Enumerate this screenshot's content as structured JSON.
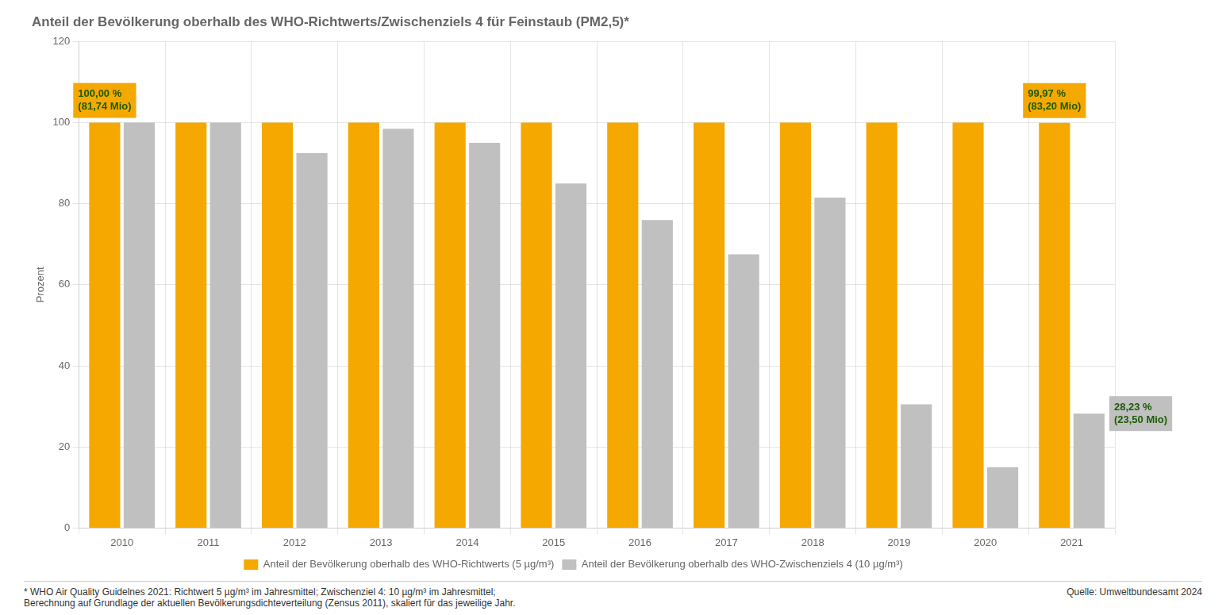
{
  "chart_data": {
    "type": "bar",
    "title": "Anteil der Bevölkerung oberhalb des WHO-Richtwerts/Zwischenziels 4 für Feinstaub (PM2,5)*",
    "y_label": "Prozent",
    "categories": [
      2010,
      2011,
      2012,
      2013,
      2014,
      2015,
      2016,
      2017,
      2018,
      2019,
      2020,
      2021
    ],
    "series": [
      {
        "name": "Anteil der Bevölkerung oberhalb des WHO-Richtwerts (5 µg/m³)",
        "color": "#F5A800",
        "values": [
          100.0,
          100.0,
          100.0,
          100.0,
          100.0,
          100.0,
          100.0,
          100.0,
          100.0,
          100.0,
          100.0,
          99.97
        ]
      },
      {
        "name": "Anteil der Bevölkerung oberhalb des WHO-Zwischenziels 4 (10 µg/m³)",
        "color": "#C0C0C0",
        "values": [
          100.0,
          100.0,
          92.5,
          98.5,
          95.0,
          85.0,
          76.0,
          67.5,
          81.5,
          30.5,
          15.0,
          28.23
        ]
      }
    ],
    "ylim": [
      0,
      120
    ],
    "yticks": [
      0,
      20,
      40,
      60,
      80,
      100,
      120
    ],
    "grid": true,
    "legend": "bottom",
    "annotations": [
      {
        "text": "100,00 %\n(81,74 Mio)",
        "x": 2010,
        "series": "Anteil der Bevölkerung oberhalb des WHO-Richtwerts (5 µg/m³)",
        "color": "#1a5c00"
      },
      {
        "text": "99,97 %\n(83,20 Mio)",
        "x": 2021,
        "series": "Anteil der Bevölkerung oberhalb des WHO-Richtwerts (5 µg/m³)",
        "color": "#1a5c00"
      },
      {
        "text": "28,23 %\n(23,50 Mio)",
        "x": 2021,
        "series": "Anteil der Bevölkerung oberhalb des WHO-Zwischenziels 4 (10 µg/m³)",
        "color": "#1a5c00"
      }
    ],
    "footnotes": [
      "* WHO Air Quality Guidelnes 2021: Richtwert 5 µg/m³ im Jahresmittel; Zwischenziel 4: 10 µg/m³ im Jahresmittel;\nBerechnung auf Grundlage der aktuellen Bevölkerungsdichteverteilung (Zensus 2011), skaliert für das jeweilige Jahr.",
      "Quelle: Umweltbundesamt 2024"
    ]
  }
}
